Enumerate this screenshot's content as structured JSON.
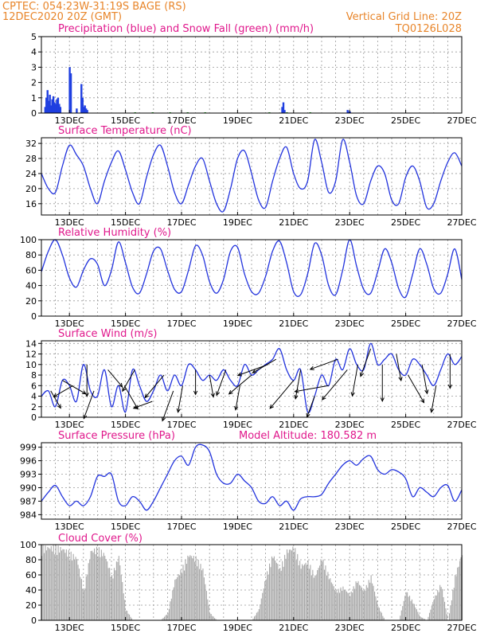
{
  "header": {
    "line1": "CPTEC:   054:23W-31:19S   BAGE (RS)",
    "line2": "12DEC2020 20Z (GMT)",
    "grid_note": "Vertical Grid Line: 20Z",
    "code": "TQ0126L028"
  },
  "colors": {
    "header": "#e8852a",
    "title": "#e0188c",
    "line": "#2233dd",
    "precip": "#1f3fe0",
    "snow": "#18a018",
    "cloud": "#a9a9a9",
    "arrow": "#000000"
  },
  "x_axis": {
    "hours_range": [
      0,
      360
    ],
    "vertical_grid_every_hours": 12,
    "tick_labels": [
      "13DEC",
      "15DEC",
      "17DEC",
      "19DEC",
      "21DEC",
      "23DEC",
      "25DEC",
      "27DEC"
    ],
    "tick_hours": [
      24,
      72,
      120,
      168,
      216,
      264,
      312,
      360
    ]
  },
  "chart_data": [
    {
      "type": "bar",
      "title": "Precipitation (blue) and Snow Fall (green) (mm/h)",
      "ylim": [
        0,
        5
      ],
      "yticks": [
        0,
        1,
        2,
        3,
        4,
        5
      ],
      "series": [
        {
          "name": "Precipitation",
          "color": "precip",
          "x": [
            3,
            4,
            5,
            6,
            7,
            8,
            9,
            10,
            11,
            12,
            13,
            14,
            15,
            16,
            24,
            25,
            30,
            34,
            35,
            36,
            37,
            38,
            39,
            206,
            207,
            208,
            262,
            263,
            264
          ],
          "values": [
            0.4,
            1.0,
            1.5,
            0.8,
            1.2,
            0.5,
            0.9,
            1.1,
            0.7,
            0.6,
            0.9,
            1.0,
            0.6,
            0.4,
            3.0,
            2.6,
            0.3,
            1.9,
            1.0,
            0.4,
            0.5,
            0.3,
            0.2,
            0.4,
            0.7,
            0.2,
            0.2,
            0.1,
            0.1
          ]
        },
        {
          "name": "Snow Fall",
          "color": "snow",
          "x": [
            80,
            95,
            110,
            125,
            140,
            195,
            210,
            230
          ],
          "values": [
            0.05,
            0.05,
            0.05,
            0.05,
            0.05,
            0.05,
            0.05,
            0.05
          ]
        }
      ]
    },
    {
      "type": "line",
      "title": "Surface Temperature (nC)",
      "ylim": [
        13,
        33.5
      ],
      "yticks": [
        16,
        20,
        24,
        28,
        32
      ],
      "x": [
        0,
        6,
        12,
        18,
        24,
        30,
        36,
        42,
        48,
        54,
        60,
        66,
        72,
        78,
        84,
        90,
        96,
        102,
        108,
        114,
        120,
        126,
        132,
        138,
        144,
        150,
        156,
        162,
        168,
        174,
        180,
        186,
        192,
        198,
        204,
        210,
        216,
        222,
        228,
        234,
        240,
        246,
        252,
        258,
        264,
        270,
        276,
        282,
        288,
        294,
        300,
        306,
        312,
        318,
        324,
        330,
        336,
        342,
        348,
        354,
        360
      ],
      "values": [
        24,
        20,
        19,
        26,
        31.5,
        29,
        26,
        20,
        16,
        22,
        27,
        30,
        25,
        19,
        16,
        23,
        29,
        31.5,
        26,
        19,
        16,
        21,
        26,
        28,
        22,
        16,
        14,
        20,
        28,
        30,
        24,
        17,
        15,
        22,
        28,
        31,
        24,
        20,
        22,
        33,
        27,
        19,
        22,
        33,
        27,
        18,
        16,
        22,
        26,
        24,
        17,
        16,
        23,
        26,
        22,
        15,
        16,
        22,
        27,
        29.5,
        26
      ],
      "color": "line"
    },
    {
      "type": "line",
      "title": "Relative Humidity (%)",
      "ylim": [
        0,
        100
      ],
      "yticks": [
        0,
        20,
        40,
        60,
        80,
        100
      ],
      "x": [
        0,
        6,
        12,
        18,
        24,
        30,
        36,
        42,
        48,
        54,
        60,
        66,
        72,
        78,
        84,
        90,
        96,
        102,
        108,
        114,
        120,
        126,
        132,
        138,
        144,
        150,
        156,
        162,
        168,
        174,
        180,
        186,
        192,
        198,
        204,
        210,
        216,
        222,
        228,
        234,
        240,
        246,
        252,
        258,
        264,
        270,
        276,
        282,
        288,
        294,
        300,
        306,
        312,
        318,
        324,
        330,
        336,
        342,
        348,
        354,
        360
      ],
      "values": [
        58,
        85,
        100,
        80,
        50,
        38,
        60,
        75,
        68,
        40,
        60,
        97,
        70,
        38,
        30,
        55,
        85,
        88,
        60,
        35,
        32,
        60,
        92,
        80,
        45,
        30,
        48,
        85,
        90,
        55,
        32,
        30,
        52,
        85,
        98,
        70,
        32,
        28,
        55,
        95,
        80,
        40,
        28,
        60,
        100,
        65,
        35,
        30,
        58,
        88,
        70,
        36,
        25,
        55,
        88,
        68,
        36,
        30,
        55,
        88,
        48
      ],
      "color": "line"
    },
    {
      "type": "line",
      "title": "Surface Wind (m/s)",
      "ylim": [
        0,
        14.5
      ],
      "yticks": [
        0,
        2,
        4,
        6,
        8,
        10,
        12,
        14
      ],
      "x": [
        0,
        6,
        12,
        18,
        24,
        30,
        36,
        42,
        48,
        54,
        60,
        66,
        72,
        78,
        84,
        90,
        96,
        102,
        108,
        114,
        120,
        126,
        132,
        138,
        144,
        150,
        156,
        162,
        168,
        174,
        180,
        186,
        192,
        198,
        204,
        210,
        216,
        222,
        228,
        234,
        240,
        246,
        252,
        258,
        264,
        270,
        276,
        282,
        288,
        294,
        300,
        306,
        312,
        318,
        324,
        330,
        336,
        342,
        348,
        354,
        360
      ],
      "values": [
        4,
        5,
        2,
        7,
        6,
        3,
        10,
        5,
        4,
        9,
        2,
        6,
        1,
        9,
        6,
        3,
        5,
        8,
        5,
        8,
        6,
        10,
        9,
        7,
        8,
        7,
        9,
        7,
        6,
        10,
        8,
        9,
        10,
        11,
        13,
        9,
        7,
        9,
        1,
        4,
        8,
        6,
        11,
        9,
        13,
        10,
        9,
        14,
        10,
        11,
        12,
        9,
        8,
        11,
        10,
        8,
        6,
        9,
        12,
        10,
        11.5
      ],
      "color": "line"
    },
    {
      "type": "line",
      "title": "Surface Pressure (hPa)",
      "annotation": "Model Altitude: 180.582 m",
      "ylim": [
        983,
        1000
      ],
      "yticks": [
        984,
        987,
        990,
        993,
        996,
        999
      ],
      "x": [
        0,
        6,
        12,
        18,
        24,
        30,
        36,
        42,
        48,
        54,
        60,
        66,
        72,
        78,
        84,
        90,
        96,
        102,
        108,
        114,
        120,
        126,
        132,
        138,
        144,
        150,
        156,
        162,
        168,
        174,
        180,
        186,
        192,
        198,
        204,
        210,
        216,
        222,
        228,
        234,
        240,
        246,
        252,
        258,
        264,
        270,
        276,
        282,
        288,
        294,
        300,
        306,
        312,
        318,
        324,
        330,
        336,
        342,
        348,
        354,
        360
      ],
      "values": [
        987,
        989,
        990.5,
        988,
        986,
        987,
        986,
        988,
        992.5,
        992.5,
        993,
        987,
        986,
        988,
        987,
        985,
        987,
        990,
        993,
        996,
        997,
        995,
        999,
        999.5,
        998,
        993,
        991,
        991,
        993,
        991.5,
        990,
        987,
        986.5,
        988,
        986,
        987,
        985,
        987.5,
        988,
        988,
        988.5,
        991,
        993,
        995,
        996,
        995,
        996.5,
        997,
        994,
        993,
        994,
        993.5,
        992,
        988,
        990,
        989,
        988,
        990,
        990.5,
        987,
        989.5
      ],
      "color": "line"
    },
    {
      "type": "area",
      "title": "Cloud Cover (%)",
      "ylim": [
        0,
        100
      ],
      "yticks": [
        0,
        20,
        40,
        60,
        80,
        100
      ],
      "x": [
        0,
        6,
        12,
        18,
        24,
        30,
        36,
        42,
        48,
        54,
        60,
        66,
        72,
        78,
        84,
        90,
        96,
        102,
        108,
        114,
        120,
        126,
        132,
        138,
        144,
        150,
        156,
        162,
        168,
        174,
        180,
        186,
        192,
        198,
        204,
        210,
        216,
        222,
        228,
        234,
        240,
        246,
        252,
        258,
        264,
        270,
        276,
        282,
        288,
        294,
        300,
        306,
        312,
        318,
        324,
        330,
        336,
        342,
        348,
        354,
        360
      ],
      "values": [
        100,
        100,
        100,
        98,
        92,
        85,
        40,
        95,
        98,
        90,
        60,
        88,
        15,
        0,
        0,
        0,
        0,
        0,
        10,
        55,
        70,
        90,
        85,
        70,
        10,
        0,
        0,
        0,
        0,
        0,
        0,
        15,
        60,
        90,
        70,
        95,
        100,
        75,
        80,
        60,
        85,
        60,
        40,
        45,
        35,
        55,
        40,
        60,
        20,
        0,
        0,
        0,
        40,
        25,
        5,
        0,
        30,
        50,
        0,
        60,
        92
      ],
      "color": "cloud"
    }
  ],
  "wind_vectors": {
    "x": [
      8,
      18,
      27,
      39,
      45,
      57,
      71,
      80,
      95,
      105,
      113,
      121,
      132,
      144,
      158,
      170,
      180,
      194,
      201,
      216,
      222,
      234,
      246,
      254,
      262,
      271,
      282,
      292,
      304,
      314,
      326,
      338,
      350
    ],
    "speed": [
      5,
      8,
      6,
      10,
      9,
      6,
      8,
      7,
      5,
      9,
      10,
      8,
      7,
      6,
      8,
      7,
      9,
      10,
      8,
      12,
      9,
      6,
      11,
      9,
      13,
      10,
      9,
      12,
      8,
      10,
      9,
      8,
      11
    ],
    "dir_deg": [
      300,
      330,
      210,
      270,
      250,
      310,
      300,
      240,
      200,
      230,
      250,
      260,
      270,
      280,
      250,
      260,
      220,
      200,
      210,
      230,
      260,
      250,
      190,
      200,
      230,
      260,
      250,
      270,
      280,
      300,
      280,
      260,
      270
    ]
  }
}
